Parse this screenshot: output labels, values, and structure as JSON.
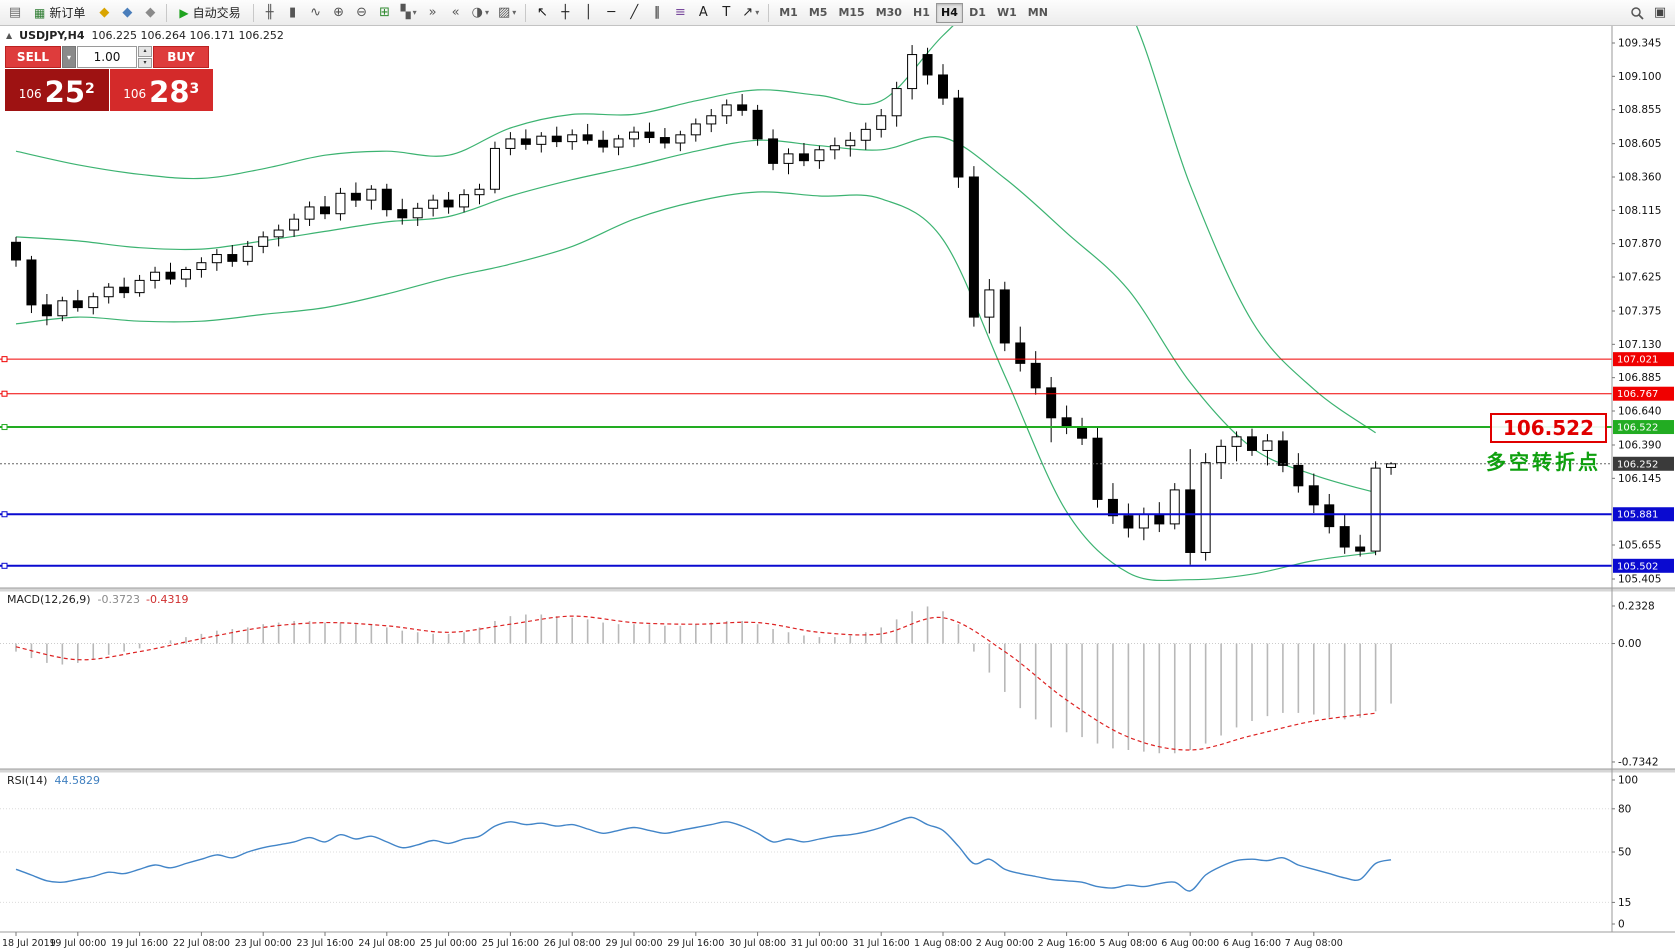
{
  "toolbar": {
    "new_order_label": "新订单",
    "new_order_icon_glyph": "▦",
    "autotrade_label": "自动交易",
    "autotrade_icon_glyph": "▶",
    "autotrade_icon_color": "#1fa31f",
    "new_window_glyph": "▣",
    "left_icons": [
      {
        "name": "new-chart-icon",
        "glyph": "▤",
        "color": "#6b6b6b"
      }
    ],
    "account_icons": [
      {
        "name": "history-center-icon",
        "glyph": "◆",
        "color": "#d9a400"
      },
      {
        "name": "profile-icon",
        "glyph": "◆",
        "color": "#4a7ebb"
      },
      {
        "name": "community-icon",
        "glyph": "◆",
        "color": "#8a8a8a"
      }
    ],
    "chart_icons": [
      {
        "name": "bar-chart-icon",
        "glyph": "╫",
        "color": "#555555"
      },
      {
        "name": "candlestick-chart-icon",
        "glyph": "▮",
        "color": "#555555"
      },
      {
        "name": "line-chart-icon",
        "glyph": "∿",
        "color": "#555555"
      },
      {
        "name": "zoom-in-icon",
        "glyph": "⊕",
        "color": "#555555"
      },
      {
        "name": "zoom-out-icon",
        "glyph": "⊖",
        "color": "#555555"
      },
      {
        "name": "tile-windows-icon",
        "glyph": "⊞",
        "color": "#2f8a2f"
      },
      {
        "name": "arrange-windows-icon",
        "glyph": "▚",
        "color": "#555555",
        "caret": true
      },
      {
        "name": "auto-scroll-icon",
        "glyph": "»",
        "color": "#555555"
      },
      {
        "name": "chart-shift-icon",
        "glyph": "«",
        "color": "#555555"
      },
      {
        "name": "period-icon",
        "glyph": "◑",
        "color": "#555555",
        "caret": true
      },
      {
        "name": "templates-icon",
        "glyph": "▨",
        "color": "#555555",
        "caret": true
      }
    ],
    "tool_icons": [
      {
        "name": "cursor-icon",
        "glyph": "↖",
        "color": "#111111"
      },
      {
        "name": "crosshair-icon",
        "glyph": "┼",
        "color": "#222222"
      },
      {
        "name": "vertical-line-icon",
        "glyph": "│",
        "color": "#222222"
      },
      {
        "name": "horizontal-line-icon",
        "glyph": "─",
        "color": "#222222"
      },
      {
        "name": "trendline-icon",
        "glyph": "╱",
        "color": "#222222"
      },
      {
        "name": "equidistant-channel-icon",
        "glyph": "∥",
        "color": "#222222"
      },
      {
        "name": "fibonacci-icon",
        "glyph": "≡",
        "color": "#7a4a9e"
      },
      {
        "name": "text-icon",
        "glyph": "A",
        "color": "#222222"
      },
      {
        "name": "label-icon",
        "glyph": "T",
        "color": "#222222"
      },
      {
        "name": "arrows-icon",
        "glyph": "↗",
        "color": "#222222",
        "caret": true
      }
    ],
    "timeframes": {
      "items": [
        "M1",
        "M5",
        "M15",
        "M30",
        "H1",
        "H4",
        "D1",
        "W1",
        "MN"
      ],
      "active": "H4"
    }
  },
  "quote_header": {
    "toggle_glyph": "▲",
    "symbol_period": "USDJPY,H4",
    "ohlc": "106.225 106.264 106.171 106.252"
  },
  "trade_panel": {
    "sell_label": "SELL",
    "buy_label": "BUY",
    "volume": "1.00",
    "caret_glyph": "▾",
    "spinner_up_glyph": "▴",
    "spinner_down_glyph": "▾",
    "sell_price_prefix": "106",
    "sell_price_main": "25",
    "sell_price_sup": "2",
    "buy_price_prefix": "106",
    "buy_price_main": "28",
    "buy_price_sup": "3"
  },
  "annotations": {
    "price_callout": "106.522",
    "callout_color": "#e00000",
    "turning_point": "多空转折点",
    "turning_point_color": "#0ea00e"
  },
  "colors": {
    "bull_candle": "#ffffff",
    "bear_candle": "#000000",
    "candle_outline": "#000000",
    "sell_buy_red": "#d42a2a",
    "panel_sell_red": "#9e1212"
  },
  "chart_data": {
    "type": "candlestick",
    "symbol": "USDJPY",
    "timeframe": "H4",
    "current_bar": {
      "open": "106.225",
      "high": "106.264",
      "low": "106.171",
      "close": "106.252"
    },
    "price_axis_ticks": [
      109.345,
      109.1,
      108.855,
      108.605,
      108.36,
      108.115,
      107.87,
      107.625,
      107.375,
      107.13,
      106.885,
      106.64,
      106.39,
      106.145,
      105.655,
      105.405
    ],
    "time_labels": [
      "18 Jul 2019",
      "19 Jul 00:00",
      "19 Jul 16:00",
      "22 Jul 08:00",
      "23 Jul 00:00",
      "23 Jul 16:00",
      "24 Jul 08:00",
      "25 Jul 00:00",
      "25 Jul 16:00",
      "26 Jul 08:00",
      "29 Jul 00:00",
      "29 Jul 16:00",
      "30 Jul 08:00",
      "31 Jul 00:00",
      "31 Jul 16:00",
      "1 Aug 08:00",
      "2 Aug 00:00",
      "2 Aug 16:00",
      "5 Aug 08:00",
      "6 Aug 00:00",
      "6 Aug 16:00",
      "7 Aug 08:00"
    ],
    "candles": [
      [
        107.88,
        107.92,
        107.7,
        107.75
      ],
      [
        107.75,
        107.78,
        107.36,
        107.42
      ],
      [
        107.42,
        107.5,
        107.27,
        107.34
      ],
      [
        107.34,
        107.48,
        107.3,
        107.45
      ],
      [
        107.45,
        107.53,
        107.37,
        107.4
      ],
      [
        107.4,
        107.51,
        107.35,
        107.48
      ],
      [
        107.48,
        107.58,
        107.43,
        107.55
      ],
      [
        107.55,
        107.62,
        107.47,
        107.51
      ],
      [
        107.51,
        107.64,
        107.48,
        107.6
      ],
      [
        107.6,
        107.7,
        107.54,
        107.66
      ],
      [
        107.66,
        107.73,
        107.57,
        107.61
      ],
      [
        107.61,
        107.7,
        107.55,
        107.68
      ],
      [
        107.68,
        107.77,
        107.62,
        107.73
      ],
      [
        107.73,
        107.83,
        107.67,
        107.79
      ],
      [
        107.79,
        107.86,
        107.7,
        107.74
      ],
      [
        107.74,
        107.89,
        107.71,
        107.85
      ],
      [
        107.85,
        107.96,
        107.8,
        107.92
      ],
      [
        107.92,
        108.01,
        107.85,
        107.97
      ],
      [
        107.97,
        108.09,
        107.92,
        108.05
      ],
      [
        108.05,
        108.18,
        108.0,
        108.14
      ],
      [
        108.14,
        108.22,
        108.05,
        108.09
      ],
      [
        108.09,
        108.28,
        108.04,
        108.24
      ],
      [
        108.24,
        108.32,
        108.14,
        108.19
      ],
      [
        108.19,
        108.3,
        108.12,
        108.27
      ],
      [
        108.27,
        108.31,
        108.07,
        108.12
      ],
      [
        108.12,
        108.2,
        108.01,
        108.06
      ],
      [
        108.06,
        108.17,
        108.0,
        108.13
      ],
      [
        108.13,
        108.23,
        108.07,
        108.19
      ],
      [
        108.19,
        108.25,
        108.09,
        108.14
      ],
      [
        108.14,
        108.27,
        108.1,
        108.23
      ],
      [
        108.23,
        108.31,
        108.16,
        108.27
      ],
      [
        108.27,
        108.62,
        108.24,
        108.57
      ],
      [
        108.57,
        108.69,
        108.52,
        108.64
      ],
      [
        108.64,
        108.71,
        108.56,
        108.6
      ],
      [
        108.6,
        108.69,
        108.54,
        108.66
      ],
      [
        108.66,
        108.73,
        108.58,
        108.62
      ],
      [
        108.62,
        108.71,
        108.56,
        108.67
      ],
      [
        108.67,
        108.75,
        108.6,
        108.63
      ],
      [
        108.63,
        108.7,
        108.54,
        108.58
      ],
      [
        108.58,
        108.67,
        108.52,
        108.64
      ],
      [
        108.64,
        108.73,
        108.58,
        108.69
      ],
      [
        108.69,
        108.76,
        108.61,
        108.65
      ],
      [
        108.65,
        108.72,
        108.57,
        108.61
      ],
      [
        108.61,
        108.7,
        108.55,
        108.67
      ],
      [
        108.67,
        108.79,
        108.62,
        108.75
      ],
      [
        108.75,
        108.86,
        108.69,
        108.81
      ],
      [
        108.81,
        108.93,
        108.75,
        108.89
      ],
      [
        108.89,
        108.97,
        108.81,
        108.85
      ],
      [
        108.85,
        108.89,
        108.59,
        108.64
      ],
      [
        108.64,
        108.71,
        108.41,
        108.46
      ],
      [
        108.46,
        108.57,
        108.38,
        108.53
      ],
      [
        108.53,
        108.61,
        108.44,
        108.48
      ],
      [
        108.48,
        108.59,
        108.42,
        108.56
      ],
      [
        108.56,
        108.65,
        108.49,
        108.59
      ],
      [
        108.59,
        108.69,
        108.51,
        108.63
      ],
      [
        108.63,
        108.76,
        108.56,
        108.71
      ],
      [
        108.71,
        108.86,
        108.65,
        108.81
      ],
      [
        108.81,
        109.06,
        108.73,
        109.01
      ],
      [
        109.01,
        109.33,
        108.93,
        109.26
      ],
      [
        109.26,
        109.31,
        109.04,
        109.11
      ],
      [
        109.11,
        109.19,
        108.89,
        108.94
      ],
      [
        108.94,
        109.0,
        108.28,
        108.36
      ],
      [
        108.36,
        108.44,
        107.26,
        107.33
      ],
      [
        107.33,
        107.61,
        107.21,
        107.53
      ],
      [
        107.53,
        107.59,
        107.08,
        107.14
      ],
      [
        107.14,
        107.26,
        106.93,
        106.99
      ],
      [
        106.99,
        107.08,
        106.76,
        106.81
      ],
      [
        106.81,
        106.89,
        106.41,
        106.59
      ],
      [
        106.59,
        106.68,
        106.47,
        106.52
      ],
      [
        106.52,
        106.59,
        106.39,
        106.44
      ],
      [
        106.44,
        106.52,
        105.93,
        105.99
      ],
      [
        105.99,
        106.11,
        105.81,
        105.87
      ],
      [
        105.87,
        105.96,
        105.71,
        105.78
      ],
      [
        105.78,
        105.93,
        105.69,
        105.88
      ],
      [
        105.88,
        105.97,
        105.75,
        105.81
      ],
      [
        105.81,
        106.11,
        105.77,
        106.06
      ],
      [
        106.06,
        106.36,
        105.51,
        105.6
      ],
      [
        105.6,
        106.33,
        105.54,
        106.26
      ],
      [
        106.26,
        106.43,
        106.14,
        106.38
      ],
      [
        106.38,
        106.49,
        106.27,
        106.45
      ],
      [
        106.45,
        106.51,
        106.31,
        106.35
      ],
      [
        106.35,
        106.47,
        106.24,
        106.42
      ],
      [
        106.42,
        106.49,
        106.19,
        106.24
      ],
      [
        106.24,
        106.33,
        106.04,
        106.09
      ],
      [
        106.09,
        106.18,
        105.89,
        105.95
      ],
      [
        105.95,
        106.03,
        105.74,
        105.79
      ],
      [
        105.79,
        105.88,
        105.59,
        105.64
      ],
      [
        105.64,
        105.73,
        105.57,
        105.61
      ],
      [
        105.61,
        106.27,
        105.58,
        106.22
      ],
      [
        106.225,
        106.264,
        106.171,
        106.252
      ]
    ],
    "bollinger": {
      "color": "#3cb371",
      "sample_step": 4,
      "upper": [
        108.55,
        108.45,
        108.38,
        108.35,
        108.42,
        108.52,
        108.55,
        108.52,
        108.72,
        108.82,
        108.82,
        108.92,
        109.0,
        108.96,
        108.92,
        109.4,
        109.8,
        110.0,
        109.6,
        108.3,
        107.3,
        106.8,
        106.48
      ],
      "middle": [
        107.92,
        107.89,
        107.84,
        107.83,
        107.89,
        107.96,
        108.03,
        108.07,
        108.22,
        108.34,
        108.44,
        108.55,
        108.63,
        108.59,
        108.56,
        108.65,
        108.35,
        107.95,
        107.53,
        106.85,
        106.37,
        106.17,
        106.04
      ],
      "lower": [
        107.28,
        107.33,
        107.3,
        107.3,
        107.35,
        107.4,
        107.5,
        107.62,
        107.72,
        107.85,
        108.05,
        108.18,
        108.25,
        108.22,
        108.2,
        107.9,
        106.9,
        105.9,
        105.45,
        105.4,
        105.44,
        105.54,
        105.6
      ]
    },
    "hlines": [
      {
        "price": 107.021,
        "color": "#f00000",
        "width": 1
      },
      {
        "price": 106.767,
        "color": "#f00000",
        "width": 1
      },
      {
        "price": 106.522,
        "color": "#22ac22",
        "width": 2
      },
      {
        "price": 105.881,
        "color": "#0a0ad0",
        "width": 2
      },
      {
        "price": 105.502,
        "color": "#0a0ad0",
        "width": 2
      }
    ],
    "current_price": {
      "price": 106.252,
      "badge_color": "#3a3a3a"
    },
    "macd": {
      "label": "MACD(12,26,9)",
      "value_main": "-0.3723",
      "value_signal": "-0.4319",
      "hist_color": "#b8b8b8",
      "signal_color": "#dd2222",
      "axis": [
        {
          "label": "0.2328",
          "value": 0.2328
        },
        {
          "label": "0.00",
          "value": 0
        },
        {
          "label": "-0.7342",
          "value": -0.7342
        }
      ],
      "values": [
        -0.05,
        -0.09,
        -0.12,
        -0.13,
        -0.12,
        -0.1,
        -0.07,
        -0.05,
        -0.03,
        0.0,
        0.02,
        0.04,
        0.06,
        0.08,
        0.09,
        0.1,
        0.12,
        0.13,
        0.14,
        0.14,
        0.13,
        0.13,
        0.12,
        0.12,
        0.1,
        0.08,
        0.07,
        0.06,
        0.06,
        0.07,
        0.1,
        0.14,
        0.17,
        0.18,
        0.18,
        0.17,
        0.16,
        0.15,
        0.13,
        0.12,
        0.12,
        0.12,
        0.11,
        0.11,
        0.12,
        0.13,
        0.14,
        0.14,
        0.12,
        0.09,
        0.07,
        0.05,
        0.04,
        0.04,
        0.05,
        0.07,
        0.1,
        0.15,
        0.2,
        0.23,
        0.2,
        0.12,
        -0.05,
        -0.18,
        -0.3,
        -0.4,
        -0.47,
        -0.52,
        -0.55,
        -0.58,
        -0.62,
        -0.65,
        -0.66,
        -0.67,
        -0.68,
        -0.68,
        -0.66,
        -0.62,
        -0.57,
        -0.52,
        -0.48,
        -0.45,
        -0.43,
        -0.43,
        -0.44,
        -0.46,
        -0.47,
        -0.46,
        -0.42,
        -0.3723
      ],
      "signal_sample_step": 4,
      "signal_samples": [
        -0.02,
        -0.1,
        -0.05,
        0.03,
        0.1,
        0.13,
        0.11,
        0.07,
        0.12,
        0.17,
        0.13,
        0.12,
        0.13,
        0.07,
        0.06,
        0.16,
        -0.05,
        -0.35,
        -0.58,
        -0.66,
        -0.57,
        -0.48,
        -0.4319
      ]
    },
    "rsi": {
      "label": "RSI(14)",
      "value": "44.5829",
      "color": "#4285c8",
      "axis": [
        {
          "label": "100",
          "value": 100
        },
        {
          "label": "80",
          "value": 80
        },
        {
          "label": "50",
          "value": 50
        },
        {
          "label": "15",
          "value": 15
        },
        {
          "label": "0",
          "value": 0
        }
      ],
      "values": [
        38,
        34,
        30,
        29,
        31,
        33,
        36,
        35,
        38,
        41,
        39,
        42,
        45,
        48,
        46,
        50,
        53,
        55,
        57,
        60,
        57,
        62,
        59,
        61,
        57,
        53,
        55,
        58,
        56,
        59,
        61,
        68,
        71,
        69,
        70,
        68,
        69,
        66,
        63,
        65,
        67,
        65,
        63,
        65,
        67,
        69,
        71,
        68,
        63,
        57,
        59,
        57,
        59,
        61,
        62,
        64,
        67,
        71,
        74,
        69,
        65,
        54,
        42,
        45,
        38,
        35,
        33,
        31,
        30,
        29,
        26,
        25,
        27,
        26,
        28,
        29,
        23,
        34,
        40,
        44,
        45,
        44,
        46,
        41,
        38,
        35,
        32,
        31,
        42,
        44.5829
      ]
    }
  }
}
